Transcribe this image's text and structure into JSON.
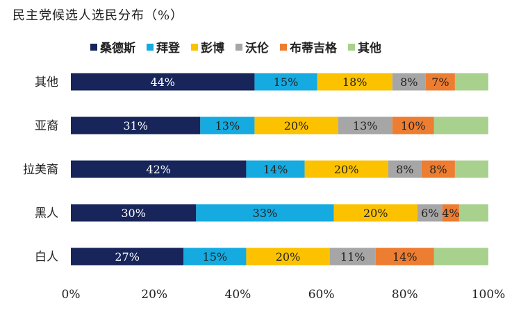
{
  "title": "民主党候选人选民分布（%）",
  "chart_data": {
    "type": "bar",
    "orientation": "horizontal",
    "stacked": true,
    "title": "民主党候选人选民分布（%）",
    "categories": [
      "其他",
      "亚裔",
      "拉美裔",
      "黑人",
      "白人"
    ],
    "series": [
      {
        "name": "桑德斯",
        "color": "#17255a",
        "values": [
          44,
          31,
          42,
          30,
          27
        ],
        "labels": [
          "44%",
          "31%",
          "42%",
          "30%",
          "27%"
        ]
      },
      {
        "name": "拜登",
        "color": "#15aae0",
        "values": [
          15,
          13,
          14,
          33,
          15
        ],
        "labels": [
          "15%",
          "13%",
          "14%",
          "33%",
          "15%"
        ]
      },
      {
        "name": "彭博",
        "color": "#fcc200",
        "values": [
          18,
          20,
          20,
          20,
          20
        ],
        "labels": [
          "18%",
          "20%",
          "20%",
          "20%",
          "20%"
        ]
      },
      {
        "name": "沃伦",
        "color": "#a6a6a6",
        "values": [
          8,
          13,
          8,
          6,
          11
        ],
        "labels": [
          "8%",
          "13%",
          "8%",
          "6%",
          "11%"
        ]
      },
      {
        "name": "布蒂吉格",
        "color": "#ed7d31",
        "values": [
          7,
          10,
          8,
          4,
          14
        ],
        "labels": [
          "7%",
          "10%",
          "8%",
          "4%",
          "14%"
        ]
      },
      {
        "name": "其他",
        "color": "#a9d18e",
        "values": [
          8,
          13,
          8,
          7,
          13
        ],
        "labels": [
          "",
          "",
          "",
          "",
          ""
        ]
      }
    ],
    "xlim": [
      0,
      100
    ],
    "xticks": [
      "0%",
      "20%",
      "40%",
      "60%",
      "80%",
      "100%"
    ],
    "grid": false,
    "legend_position": "top"
  }
}
